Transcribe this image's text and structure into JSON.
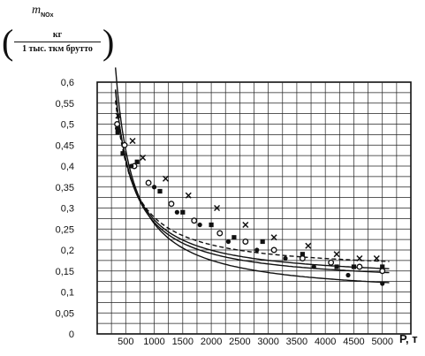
{
  "ylabel": {
    "symbol": "m",
    "subscript": "NOx",
    "unit_numerator": "кг",
    "unit_denominator": "1 тыс. ткм брутто"
  },
  "chart_data": {
    "type": "scatter",
    "title": "",
    "xlabel": "P, т",
    "xlim": [
      0,
      5500
    ],
    "ylim": [
      0,
      0.6
    ],
    "grid": true,
    "x_ticks": [
      500,
      1000,
      1500,
      2000,
      2500,
      3000,
      3500,
      4000,
      4500,
      5000
    ],
    "y_ticks": [
      0,
      0.05,
      0.1,
      0.15,
      0.2,
      0.25,
      0.3,
      0.35,
      0.4,
      0.45,
      0.5,
      0.55,
      0.6
    ],
    "x_tick_labels": [
      "500",
      "1000",
      "1500",
      "2000",
      "2500",
      "3000",
      "3500",
      "4000",
      "4500",
      "5000"
    ],
    "y_tick_labels": [
      "0",
      "0,05",
      "0,1",
      "0,15",
      "0,2",
      "0,25",
      "0,3",
      "0,35",
      "0,4",
      "0,45",
      "0,5",
      "0,55",
      "0,6"
    ],
    "series": [
      {
        "marker": "x",
        "x": [
          370,
          620,
          800,
          1200,
          1600,
          2100,
          2600,
          3100,
          3700,
          4200,
          4600,
          4900
        ],
        "y": [
          0.52,
          0.46,
          0.42,
          0.37,
          0.33,
          0.3,
          0.26,
          0.23,
          0.21,
          0.19,
          0.18,
          0.18
        ]
      },
      {
        "marker": "circle",
        "x": [
          350,
          480,
          650,
          900,
          1300,
          1700,
          2150,
          2600,
          3100,
          3600,
          4100,
          4600,
          5000
        ],
        "y": [
          0.5,
          0.45,
          0.4,
          0.36,
          0.31,
          0.27,
          0.24,
          0.22,
          0.2,
          0.18,
          0.17,
          0.16,
          0.15
        ]
      },
      {
        "marker": "square",
        "x": [
          360,
          450,
          700,
          1100,
          1500,
          2000,
          2400,
          2900,
          3600,
          4200,
          4500,
          5000
        ],
        "y": [
          0.48,
          0.43,
          0.41,
          0.34,
          0.29,
          0.26,
          0.23,
          0.22,
          0.19,
          0.16,
          0.16,
          0.16
        ]
      },
      {
        "marker": "dot",
        "x": [
          350,
          450,
          600,
          1000,
          1400,
          1800,
          2300,
          2800,
          3300,
          3800,
          4400,
          5000
        ],
        "y": [
          0.49,
          0.43,
          0.4,
          0.35,
          0.29,
          0.26,
          0.22,
          0.2,
          0.18,
          0.16,
          0.14,
          0.12
        ]
      }
    ],
    "curves": [
      {
        "a": 131,
        "b": 0.147
      },
      {
        "a": 145,
        "b": 0.127
      },
      {
        "a": 149,
        "b": 0.117
      },
      {
        "a": 175,
        "b": 0.088
      }
    ]
  }
}
